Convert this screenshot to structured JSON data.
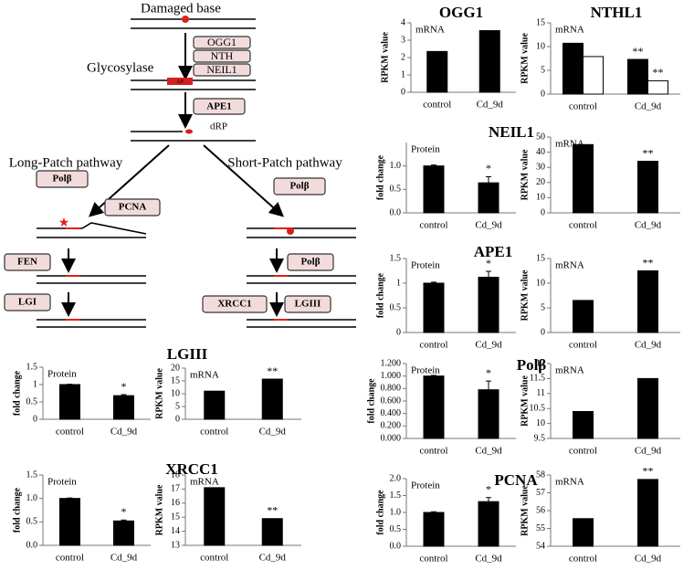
{
  "diagram": {
    "top_label": "Damaged base",
    "glycosylases": [
      "OGG1",
      "NTH",
      "NEIL1"
    ],
    "glycosylase_label": "Glycosylase",
    "ap_label": "AP",
    "ape_label": "APE1",
    "drp_label": "dRP",
    "long_patch": {
      "title": "Long-Patch pathway",
      "proteins": [
        "Polβ",
        "PCNA",
        "FEN",
        "LGI"
      ]
    },
    "short_patch": {
      "title": "Short-Patch pathway",
      "proteins": [
        "Polβ",
        "Polβ",
        "XRCC1",
        "LGIII"
      ]
    }
  },
  "chart_data": [
    {
      "type": "bar",
      "title": "OGG1",
      "label": "mRNA",
      "ylabel": "RPKM value",
      "categories": [
        "control",
        "Cd_9d"
      ],
      "series": [
        {
          "color": "#000000",
          "values": [
            2.35,
            3.55
          ]
        }
      ],
      "ylim": [
        0,
        4
      ],
      "yticks": [
        0,
        1,
        2,
        3,
        4
      ]
    },
    {
      "type": "bar",
      "title": "NTHL1",
      "label": "mRNA",
      "ylabel": "RPKM value",
      "categories": [
        "control",
        "Cd_9d"
      ],
      "series": [
        {
          "color": "#000000",
          "values": [
            10.7,
            7.3
          ],
          "annotations": [
            {
              "text": "**",
              "x": "Cd_9d"
            }
          ]
        },
        {
          "color": "#ffffff",
          "values": [
            7.9,
            2.8
          ],
          "annotations": [
            {
              "text": "**",
              "x": "Cd_9d"
            }
          ]
        }
      ],
      "ylim": [
        0,
        15
      ],
      "yticks": [
        0,
        5,
        10,
        15
      ]
    },
    {
      "type": "bar",
      "title": "NEIL1",
      "label": "Protein",
      "ylabel": "fold change",
      "categories": [
        "control",
        "Cd_9d"
      ],
      "series": [
        {
          "color": "#000000",
          "values": [
            1.0,
            0.64
          ],
          "errors": [
            0.02,
            0.13
          ],
          "annotations": [
            {
              "text": "*",
              "x": "Cd_9d"
            }
          ]
        }
      ],
      "ylim": [
        0,
        1.5
      ],
      "yticks": [
        {
          "value": 0,
          "label": "0.0"
        },
        0.5,
        {
          "value": 1,
          "label": "1.0"
        }
      ]
    },
    {
      "type": "bar",
      "label": "mRNA",
      "ylabel": "RPKM value",
      "categories": [
        "control",
        "Cd_9d"
      ],
      "series": [
        {
          "color": "#000000",
          "values": [
            45,
            34
          ],
          "annotations": [
            {
              "text": "**",
              "x": "Cd_9d"
            }
          ]
        }
      ],
      "ylim": [
        0,
        50
      ],
      "yticks": [
        0,
        10,
        20,
        30,
        40,
        50
      ]
    },
    {
      "type": "bar",
      "title": "APE1",
      "label": "Protein",
      "ylabel": "fold change",
      "categories": [
        "control",
        "Cd_9d"
      ],
      "series": [
        {
          "color": "#000000",
          "values": [
            1.0,
            1.12
          ],
          "errors": [
            0.02,
            0.12
          ],
          "annotations": [
            {
              "text": "*",
              "x": "Cd_9d"
            }
          ]
        }
      ],
      "ylim": [
        0,
        1.5
      ],
      "yticks": [
        0,
        0.5,
        1,
        1.5
      ]
    },
    {
      "type": "bar",
      "label": "mRNA",
      "ylabel": "RPKM value",
      "categories": [
        "control",
        "Cd_9d"
      ],
      "series": [
        {
          "color": "#000000",
          "values": [
            6.5,
            12.5
          ],
          "annotations": [
            {
              "text": "**",
              "x": "Cd_9d"
            }
          ]
        }
      ],
      "ylim": [
        0,
        15
      ],
      "yticks": [
        0,
        5,
        10,
        15
      ]
    },
    {
      "type": "bar",
      "title": "Polβ",
      "label": "Protein",
      "ylabel": "fold change",
      "categories": [
        "control",
        "Cd_9d"
      ],
      "series": [
        {
          "color": "#000000",
          "values": [
            1.0,
            0.78
          ],
          "errors": [
            0.01,
            0.14
          ],
          "annotations": [
            {
              "text": "*",
              "x": "Cd_9d"
            }
          ]
        }
      ],
      "ylim": [
        0,
        1.2
      ],
      "yticks": [
        {
          "value": 0,
          "label": "0.000"
        },
        {
          "value": 0.2,
          "label": "0.200"
        },
        {
          "value": 0.4,
          "label": "0.400"
        },
        {
          "value": 0.6,
          "label": "0.600"
        },
        {
          "value": 0.8,
          "label": "0.800"
        },
        {
          "value": 1,
          "label": "1.000"
        },
        {
          "value": 1.2,
          "label": "1.200"
        }
      ]
    },
    {
      "type": "bar",
      "label": "mRNA",
      "ylabel": "RPKM value",
      "categories": [
        "control",
        "Cd_9d"
      ],
      "series": [
        {
          "color": "#000000",
          "values": [
            10.4,
            11.5
          ]
        }
      ],
      "ylim": [
        9.5,
        12
      ],
      "yticks": [
        9.5,
        10,
        10.5,
        11,
        11.5,
        12
      ]
    },
    {
      "type": "bar",
      "title": "PCNA",
      "label": "Protein",
      "ylabel": "fold change",
      "categories": [
        "control",
        "Cd_9d"
      ],
      "series": [
        {
          "color": "#000000",
          "values": [
            1.0,
            1.32
          ],
          "errors": [
            0.02,
            0.12
          ],
          "annotations": [
            {
              "text": "*",
              "x": "Cd_9d"
            }
          ]
        }
      ],
      "ylim": [
        0,
        2
      ],
      "yticks": [
        {
          "value": 0,
          "label": "0.0"
        },
        0.5,
        {
          "value": 1,
          "label": "1.0"
        },
        1.5,
        {
          "value": 2,
          "label": "2.0"
        }
      ]
    },
    {
      "type": "bar",
      "label": "mRNA",
      "ylabel": "RPKM value",
      "categories": [
        "control",
        "Cd_9d"
      ],
      "series": [
        {
          "color": "#000000",
          "values": [
            55.55,
            57.75
          ],
          "annotations": [
            {
              "text": "**",
              "x": "Cd_9d"
            }
          ]
        }
      ],
      "ylim": [
        54,
        58
      ],
      "yticks": [
        54,
        55,
        56,
        57,
        58
      ]
    },
    {
      "type": "bar",
      "title": "LGIII",
      "label": "Protein",
      "ylabel": "fold change",
      "categories": [
        "control",
        "Cd_9d"
      ],
      "series": [
        {
          "color": "#000000",
          "values": [
            1.0,
            0.68
          ],
          "errors": [
            0.01,
            0.03
          ],
          "annotations": [
            {
              "text": "*",
              "x": "Cd_9d"
            }
          ]
        }
      ],
      "ylim": [
        0,
        1.5
      ],
      "yticks": [
        0,
        0.5,
        1,
        1.5
      ]
    },
    {
      "type": "bar",
      "label": "mRNA",
      "ylabel": "RPKM value",
      "categories": [
        "control",
        "Cd_9d"
      ],
      "series": [
        {
          "color": "#000000",
          "values": [
            11,
            15.7
          ],
          "annotations": [
            {
              "text": "**",
              "x": "Cd_9d"
            }
          ]
        }
      ],
      "ylim": [
        0,
        20
      ],
      "yticks": [
        0,
        5,
        10,
        15,
        20
      ]
    },
    {
      "type": "bar",
      "title": "XRCC1",
      "label": "Protein",
      "ylabel": "fold change",
      "categories": [
        "control",
        "Cd_9d"
      ],
      "series": [
        {
          "color": "#000000",
          "values": [
            1.0,
            0.52
          ],
          "errors": [
            0.01,
            0.02
          ],
          "annotations": [
            {
              "text": "*",
              "x": "Cd_9d"
            }
          ]
        }
      ],
      "ylim": [
        0,
        1.5
      ],
      "yticks": [
        {
          "value": 0,
          "label": "0.0"
        },
        0.5,
        {
          "value": 1,
          "label": "1.0"
        },
        1.5
      ]
    },
    {
      "type": "bar",
      "label": "mRNA",
      "ylabel": "RPKM value",
      "categories": [
        "control",
        "Cd_9d"
      ],
      "series": [
        {
          "color": "#000000",
          "values": [
            17.1,
            14.9
          ],
          "annotations": [
            {
              "text": "**",
              "x": "Cd_9d"
            }
          ]
        }
      ],
      "ylim": [
        13,
        18
      ],
      "yticks": [
        13,
        14,
        15,
        16,
        17,
        18
      ]
    }
  ]
}
